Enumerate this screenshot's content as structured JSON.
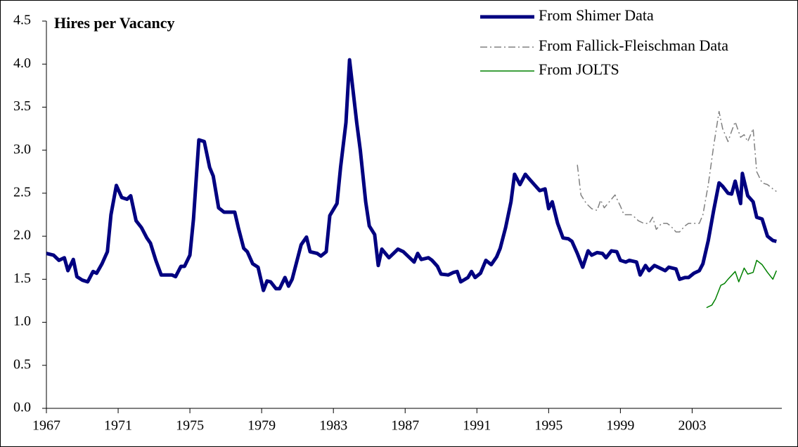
{
  "chart_data": {
    "type": "line",
    "title": "Hires per Vacancy",
    "xlim": [
      1967,
      2008
    ],
    "xticks": [
      1967,
      1971,
      1975,
      1979,
      1983,
      1987,
      1991,
      1995,
      1999,
      2003
    ],
    "ylim": [
      0,
      4.5
    ],
    "yticks": [
      {
        "value": 0,
        "label": "0.0"
      },
      0.5,
      {
        "value": 1,
        "label": "1.0"
      },
      1.5,
      {
        "value": 2,
        "label": "2.0"
      },
      2.5,
      {
        "value": 3,
        "label": "3.0"
      },
      3.5,
      {
        "value": 4,
        "label": "4.0"
      },
      4.5
    ],
    "grid": false,
    "legend": "top-right",
    "series": [
      {
        "name": "From Shimer Data",
        "color": "#000080",
        "linestyle": "solid",
        "x": [
          1967.0,
          1967.4,
          1967.7,
          1968.0,
          1968.2,
          1968.5,
          1968.7,
          1969.0,
          1969.3,
          1969.6,
          1969.8,
          1970.1,
          1970.4,
          1970.6,
          1970.9,
          1971.2,
          1971.5,
          1971.7,
          1972.0,
          1972.3,
          1972.6,
          1972.8,
          1973.1,
          1973.4,
          1973.7,
          1974.0,
          1974.2,
          1974.5,
          1974.7,
          1975.0,
          1975.2,
          1975.5,
          1975.8,
          1976.1,
          1976.3,
          1976.6,
          1976.9,
          1977.2,
          1977.5,
          1977.7,
          1978.0,
          1978.2,
          1978.5,
          1978.8,
          1979.1,
          1979.3,
          1979.5,
          1979.8,
          1980.0,
          1980.3,
          1980.5,
          1980.7,
          1981.2,
          1981.5,
          1981.7,
          1982.1,
          1982.3,
          1982.6,
          1982.8,
          1983.2,
          1983.4,
          1983.7,
          1983.9,
          1984.3,
          1984.5,
          1984.8,
          1985.0,
          1985.3,
          1985.5,
          1985.7,
          1986.1,
          1986.3,
          1986.6,
          1986.9,
          1987.2,
          1987.5,
          1987.7,
          1987.9,
          1988.3,
          1988.5,
          1988.8,
          1989.0,
          1989.4,
          1989.7,
          1989.9,
          1990.1,
          1990.5,
          1990.7,
          1990.9,
          1991.2,
          1991.5,
          1991.8,
          1992.1,
          1992.3,
          1992.6,
          1992.9,
          1993.1,
          1993.4,
          1993.7,
          1993.9,
          1994.2,
          1994.5,
          1994.8,
          1995.0,
          1995.2,
          1995.5,
          1995.8,
          1996.1,
          1996.3,
          1996.6,
          1996.9,
          1997.2,
          1997.4,
          1997.7,
          1998.0,
          1998.2,
          1998.5,
          1998.8,
          1999.0,
          1999.3,
          1999.5,
          1999.9,
          2000.1,
          2000.4,
          2000.6,
          2000.9,
          2001.2,
          2001.5,
          2001.7,
          2002.1,
          2002.3,
          2002.6,
          2002.8,
          2003.1,
          2003.4,
          2003.6,
          2003.9,
          2004.2,
          2004.5,
          2004.7,
          2005.0,
          2005.2,
          2005.4,
          2005.7,
          2005.8,
          2006.1,
          2006.4,
          2006.6,
          2006.9,
          2007.2,
          2007.5,
          2007.7
        ],
        "values": [
          1.8,
          1.78,
          1.72,
          1.75,
          1.6,
          1.73,
          1.53,
          1.49,
          1.47,
          1.59,
          1.57,
          1.68,
          1.82,
          2.25,
          2.59,
          2.45,
          2.43,
          2.47,
          2.18,
          2.1,
          1.98,
          1.92,
          1.72,
          1.55,
          1.55,
          1.55,
          1.53,
          1.65,
          1.65,
          1.78,
          2.2,
          3.12,
          3.1,
          2.8,
          2.7,
          2.33,
          2.28,
          2.28,
          2.28,
          2.1,
          1.86,
          1.82,
          1.68,
          1.64,
          1.37,
          1.48,
          1.47,
          1.39,
          1.39,
          1.52,
          1.42,
          1.5,
          1.9,
          1.99,
          1.82,
          1.8,
          1.77,
          1.82,
          2.24,
          2.38,
          2.8,
          3.32,
          4.05,
          3.32,
          3.0,
          2.4,
          2.12,
          2.02,
          1.66,
          1.85,
          1.75,
          1.79,
          1.85,
          1.82,
          1.76,
          1.7,
          1.8,
          1.73,
          1.75,
          1.72,
          1.65,
          1.56,
          1.55,
          1.58,
          1.59,
          1.47,
          1.52,
          1.59,
          1.52,
          1.57,
          1.72,
          1.67,
          1.76,
          1.86,
          2.1,
          2.4,
          2.72,
          2.6,
          2.72,
          2.67,
          2.6,
          2.53,
          2.55,
          2.32,
          2.4,
          2.15,
          1.98,
          1.97,
          1.94,
          1.8,
          1.64,
          1.83,
          1.78,
          1.81,
          1.8,
          1.75,
          1.83,
          1.82,
          1.72,
          1.7,
          1.72,
          1.7,
          1.55,
          1.66,
          1.6,
          1.66,
          1.63,
          1.6,
          1.64,
          1.62,
          1.5,
          1.52,
          1.52,
          1.57,
          1.6,
          1.68,
          1.95,
          2.3,
          2.62,
          2.58,
          2.5,
          2.49,
          2.64,
          2.38,
          2.73,
          2.47,
          2.4,
          2.22,
          2.2,
          2.0,
          1.95,
          1.94
        ]
      },
      {
        "name": "From Fallick-Fleischman Data",
        "color": "#808080",
        "linestyle": "dashdot",
        "x": [
          1996.6,
          1996.8,
          1997.1,
          1997.4,
          1997.7,
          1997.9,
          1998.1,
          1998.5,
          1998.7,
          1999.0,
          1999.2,
          1999.6,
          1999.8,
          2000.0,
          2000.3,
          2000.6,
          2000.8,
          2001.0,
          2001.3,
          2001.6,
          2001.8,
          2002.1,
          2002.3,
          2002.6,
          2002.8,
          2003.1,
          2003.4,
          2003.6,
          2003.9,
          2004.2,
          2004.5,
          2004.7,
          2005.0,
          2005.2,
          2005.4,
          2005.7,
          2005.9,
          2006.1,
          2006.4,
          2006.6,
          2006.9,
          2007.2,
          2007.5,
          2007.7
        ],
        "values": [
          2.83,
          2.48,
          2.38,
          2.32,
          2.3,
          2.42,
          2.33,
          2.43,
          2.48,
          2.35,
          2.25,
          2.25,
          2.22,
          2.18,
          2.15,
          2.15,
          2.22,
          2.08,
          2.15,
          2.15,
          2.12,
          2.05,
          2.05,
          2.12,
          2.15,
          2.15,
          2.15,
          2.25,
          2.6,
          3.05,
          3.45,
          3.25,
          3.1,
          3.22,
          3.33,
          3.15,
          3.18,
          3.1,
          3.25,
          2.75,
          2.62,
          2.6,
          2.55,
          2.52
        ]
      },
      {
        "name": "From JOLTS",
        "color": "#008000",
        "linestyle": "solid",
        "x": [
          2003.8,
          2004.1,
          2004.3,
          2004.6,
          2004.8,
          2005.0,
          2005.4,
          2005.6,
          2005.9,
          2006.1,
          2006.4,
          2006.6,
          2006.9,
          2007.2,
          2007.5,
          2007.7
        ],
        "values": [
          1.17,
          1.2,
          1.27,
          1.43,
          1.45,
          1.5,
          1.59,
          1.47,
          1.63,
          1.56,
          1.58,
          1.72,
          1.67,
          1.58,
          1.5,
          1.6
        ]
      }
    ]
  }
}
